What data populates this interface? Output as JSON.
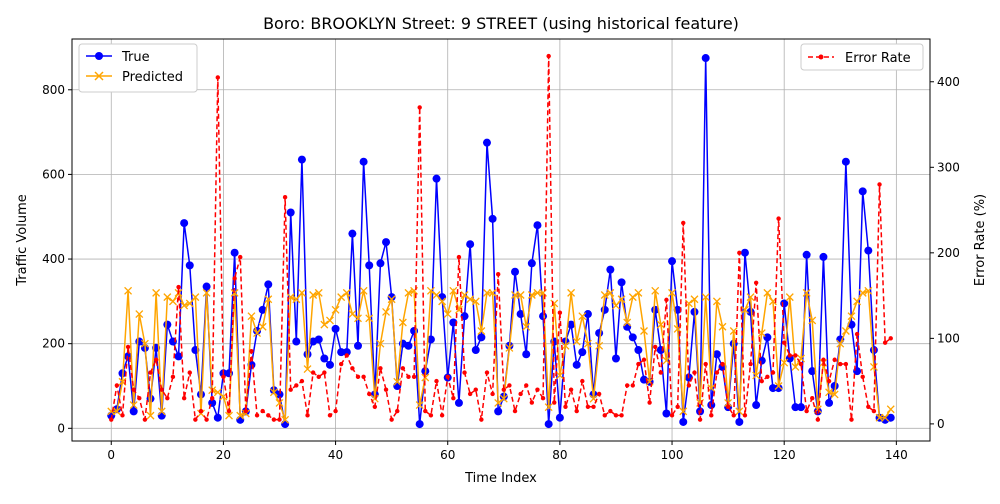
{
  "chart_data": {
    "type": "line",
    "title": "Boro: BROOKLYN Street: 9 STREET (using historical feature)",
    "xlabel": "Time Index",
    "ylabel": "Traffic Volume",
    "y2label": "Error Rate (%)",
    "xlim": [
      -7,
      146
    ],
    "ylim": [
      -30,
      920
    ],
    "y2lim": [
      -20,
      450
    ],
    "xticks": [
      0,
      20,
      40,
      60,
      80,
      100,
      120,
      140
    ],
    "yticks": [
      0,
      200,
      400,
      600,
      800
    ],
    "y2ticks": [
      0,
      100,
      200,
      300,
      400
    ],
    "grid": true,
    "legend_left": {
      "placement": "top-left",
      "entries": [
        "True",
        "Predicted"
      ]
    },
    "legend_right": {
      "placement": "top-right",
      "entries": [
        "Error Rate"
      ]
    },
    "series": [
      {
        "name": "True",
        "axis": "left",
        "color": "#0000ff",
        "marker": "circle",
        "linestyle": "solid",
        "values": [
          30,
          45,
          130,
          170,
          40,
          205,
          190,
          70,
          190,
          30,
          245,
          205,
          170,
          485,
          385,
          185,
          80,
          335,
          60,
          25,
          130,
          130,
          415,
          20,
          40,
          150,
          230,
          280,
          340,
          90,
          80,
          10,
          510,
          205,
          635,
          175,
          205,
          210,
          165,
          150,
          235,
          180,
          180,
          460,
          195,
          630,
          385,
          80,
          390,
          440,
          310,
          100,
          200,
          195,
          230,
          10,
          135,
          210,
          590,
          310,
          120,
          250,
          60,
          265,
          435,
          185,
          215,
          675,
          495,
          40,
          75,
          195,
          370,
          270,
          175,
          390,
          480,
          265,
          10,
          205,
          25,
          205,
          245,
          150,
          180,
          270,
          80,
          225,
          280,
          375,
          165,
          345,
          240,
          215,
          185,
          115,
          110,
          280,
          185,
          35,
          395,
          280,
          15,
          120,
          275,
          40,
          875,
          55,
          175,
          145,
          50,
          200,
          15,
          415,
          275,
          55,
          160,
          215,
          95,
          95,
          295,
          165,
          50,
          50,
          410,
          135,
          40,
          405,
          60,
          100,
          210,
          630,
          245,
          135,
          560,
          420,
          185,
          25,
          20,
          25
        ]
      },
      {
        "name": "Predicted",
        "axis": "left",
        "color": "#ffa500",
        "marker": "x",
        "linestyle": "solid",
        "values": [
          40,
          40,
          110,
          325,
          55,
          270,
          200,
          30,
          320,
          40,
          310,
          300,
          320,
          290,
          295,
          310,
          35,
          320,
          90,
          85,
          75,
          30,
          320,
          30,
          35,
          265,
          225,
          240,
          305,
          85,
          60,
          20,
          310,
          305,
          320,
          140,
          315,
          320,
          245,
          255,
          280,
          310,
          320,
          270,
          260,
          325,
          260,
          70,
          200,
          275,
          305,
          110,
          250,
          320,
          325,
          55,
          120,
          325,
          315,
          300,
          270,
          325,
          280,
          315,
          305,
          300,
          230,
          320,
          320,
          60,
          70,
          190,
          315,
          315,
          240,
          315,
          320,
          320,
          50,
          295,
          125,
          195,
          320,
          205,
          265,
          200,
          70,
          195,
          315,
          320,
          290,
          305,
          250,
          310,
          320,
          230,
          110,
          325,
          245,
          160,
          320,
          235,
          40,
          295,
          305,
          60,
          310,
          95,
          300,
          240,
          60,
          230,
          40,
          280,
          310,
          125,
          225,
          320,
          300,
          100,
          155,
          310,
          145,
          165,
          320,
          255,
          45,
          155,
          85,
          80,
          200,
          230,
          265,
          300,
          320,
          325,
          145,
          25,
          25,
          45
        ]
      },
      {
        "name": "Error Rate",
        "axis": "right",
        "color": "#ff0000",
        "marker": "small-circle",
        "linestyle": "dashed",
        "values": [
          5,
          45,
          10,
          90,
          40,
          30,
          5,
          60,
          75,
          40,
          30,
          55,
          160,
          30,
          60,
          5,
          15,
          5,
          30,
          405,
          55,
          15,
          170,
          195,
          15,
          85,
          10,
          15,
          10,
          5,
          5,
          265,
          40,
          45,
          50,
          10,
          60,
          55,
          60,
          10,
          15,
          70,
          80,
          65,
          55,
          55,
          35,
          20,
          65,
          40,
          5,
          15,
          65,
          55,
          55,
          370,
          15,
          10,
          50,
          10,
          55,
          30,
          195,
          60,
          35,
          40,
          5,
          60,
          35,
          175,
          40,
          45,
          15,
          35,
          45,
          25,
          40,
          30,
          430,
          25,
          130,
          20,
          40,
          15,
          50,
          20,
          20,
          35,
          10,
          15,
          10,
          10,
          45,
          45,
          70,
          75,
          25,
          90,
          60,
          145,
          10,
          20,
          235,
          45,
          60,
          5,
          70,
          10,
          60,
          70,
          20,
          10,
          200,
          10,
          70,
          165,
          50,
          55,
          60,
          240,
          95,
          80,
          80,
          70,
          15,
          30,
          5,
          75,
          50,
          75,
          70,
          70,
          5,
          105,
          55,
          20,
          15,
          280,
          95,
          100
        ]
      }
    ]
  }
}
